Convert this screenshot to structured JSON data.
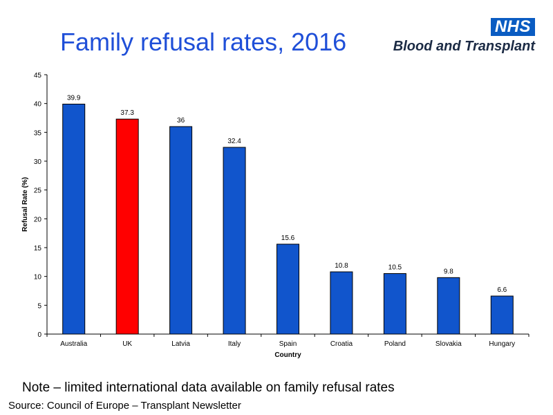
{
  "slide": {
    "title": "Family refusal rates, 2016",
    "note": "Note – limited international data available on family refusal rates",
    "source": "Source: Council of Europe – Transplant Newsletter"
  },
  "logo": {
    "nhs": "NHS",
    "org": "Blood and Transplant"
  },
  "colors": {
    "bar": "#1155cc",
    "highlight": "#ff0000",
    "title": "#1f4fd8",
    "logo_blue": "#0a5cc2"
  },
  "chart_data": {
    "type": "bar",
    "title": "",
    "xlabel": "Country",
    "ylabel": "Refusal Rate (%)",
    "ylim": [
      0,
      45
    ],
    "yticks": [
      0,
      5,
      10,
      15,
      20,
      25,
      30,
      35,
      40,
      45
    ],
    "categories": [
      "Australia",
      "UK",
      "Latvia",
      "Italy",
      "Spain",
      "Croatia",
      "Poland",
      "Slovakia",
      "Hungary"
    ],
    "values": [
      39.9,
      37.3,
      36,
      32.4,
      15.6,
      10.8,
      10.5,
      9.8,
      6.6
    ],
    "highlight": "UK",
    "grid": false
  }
}
